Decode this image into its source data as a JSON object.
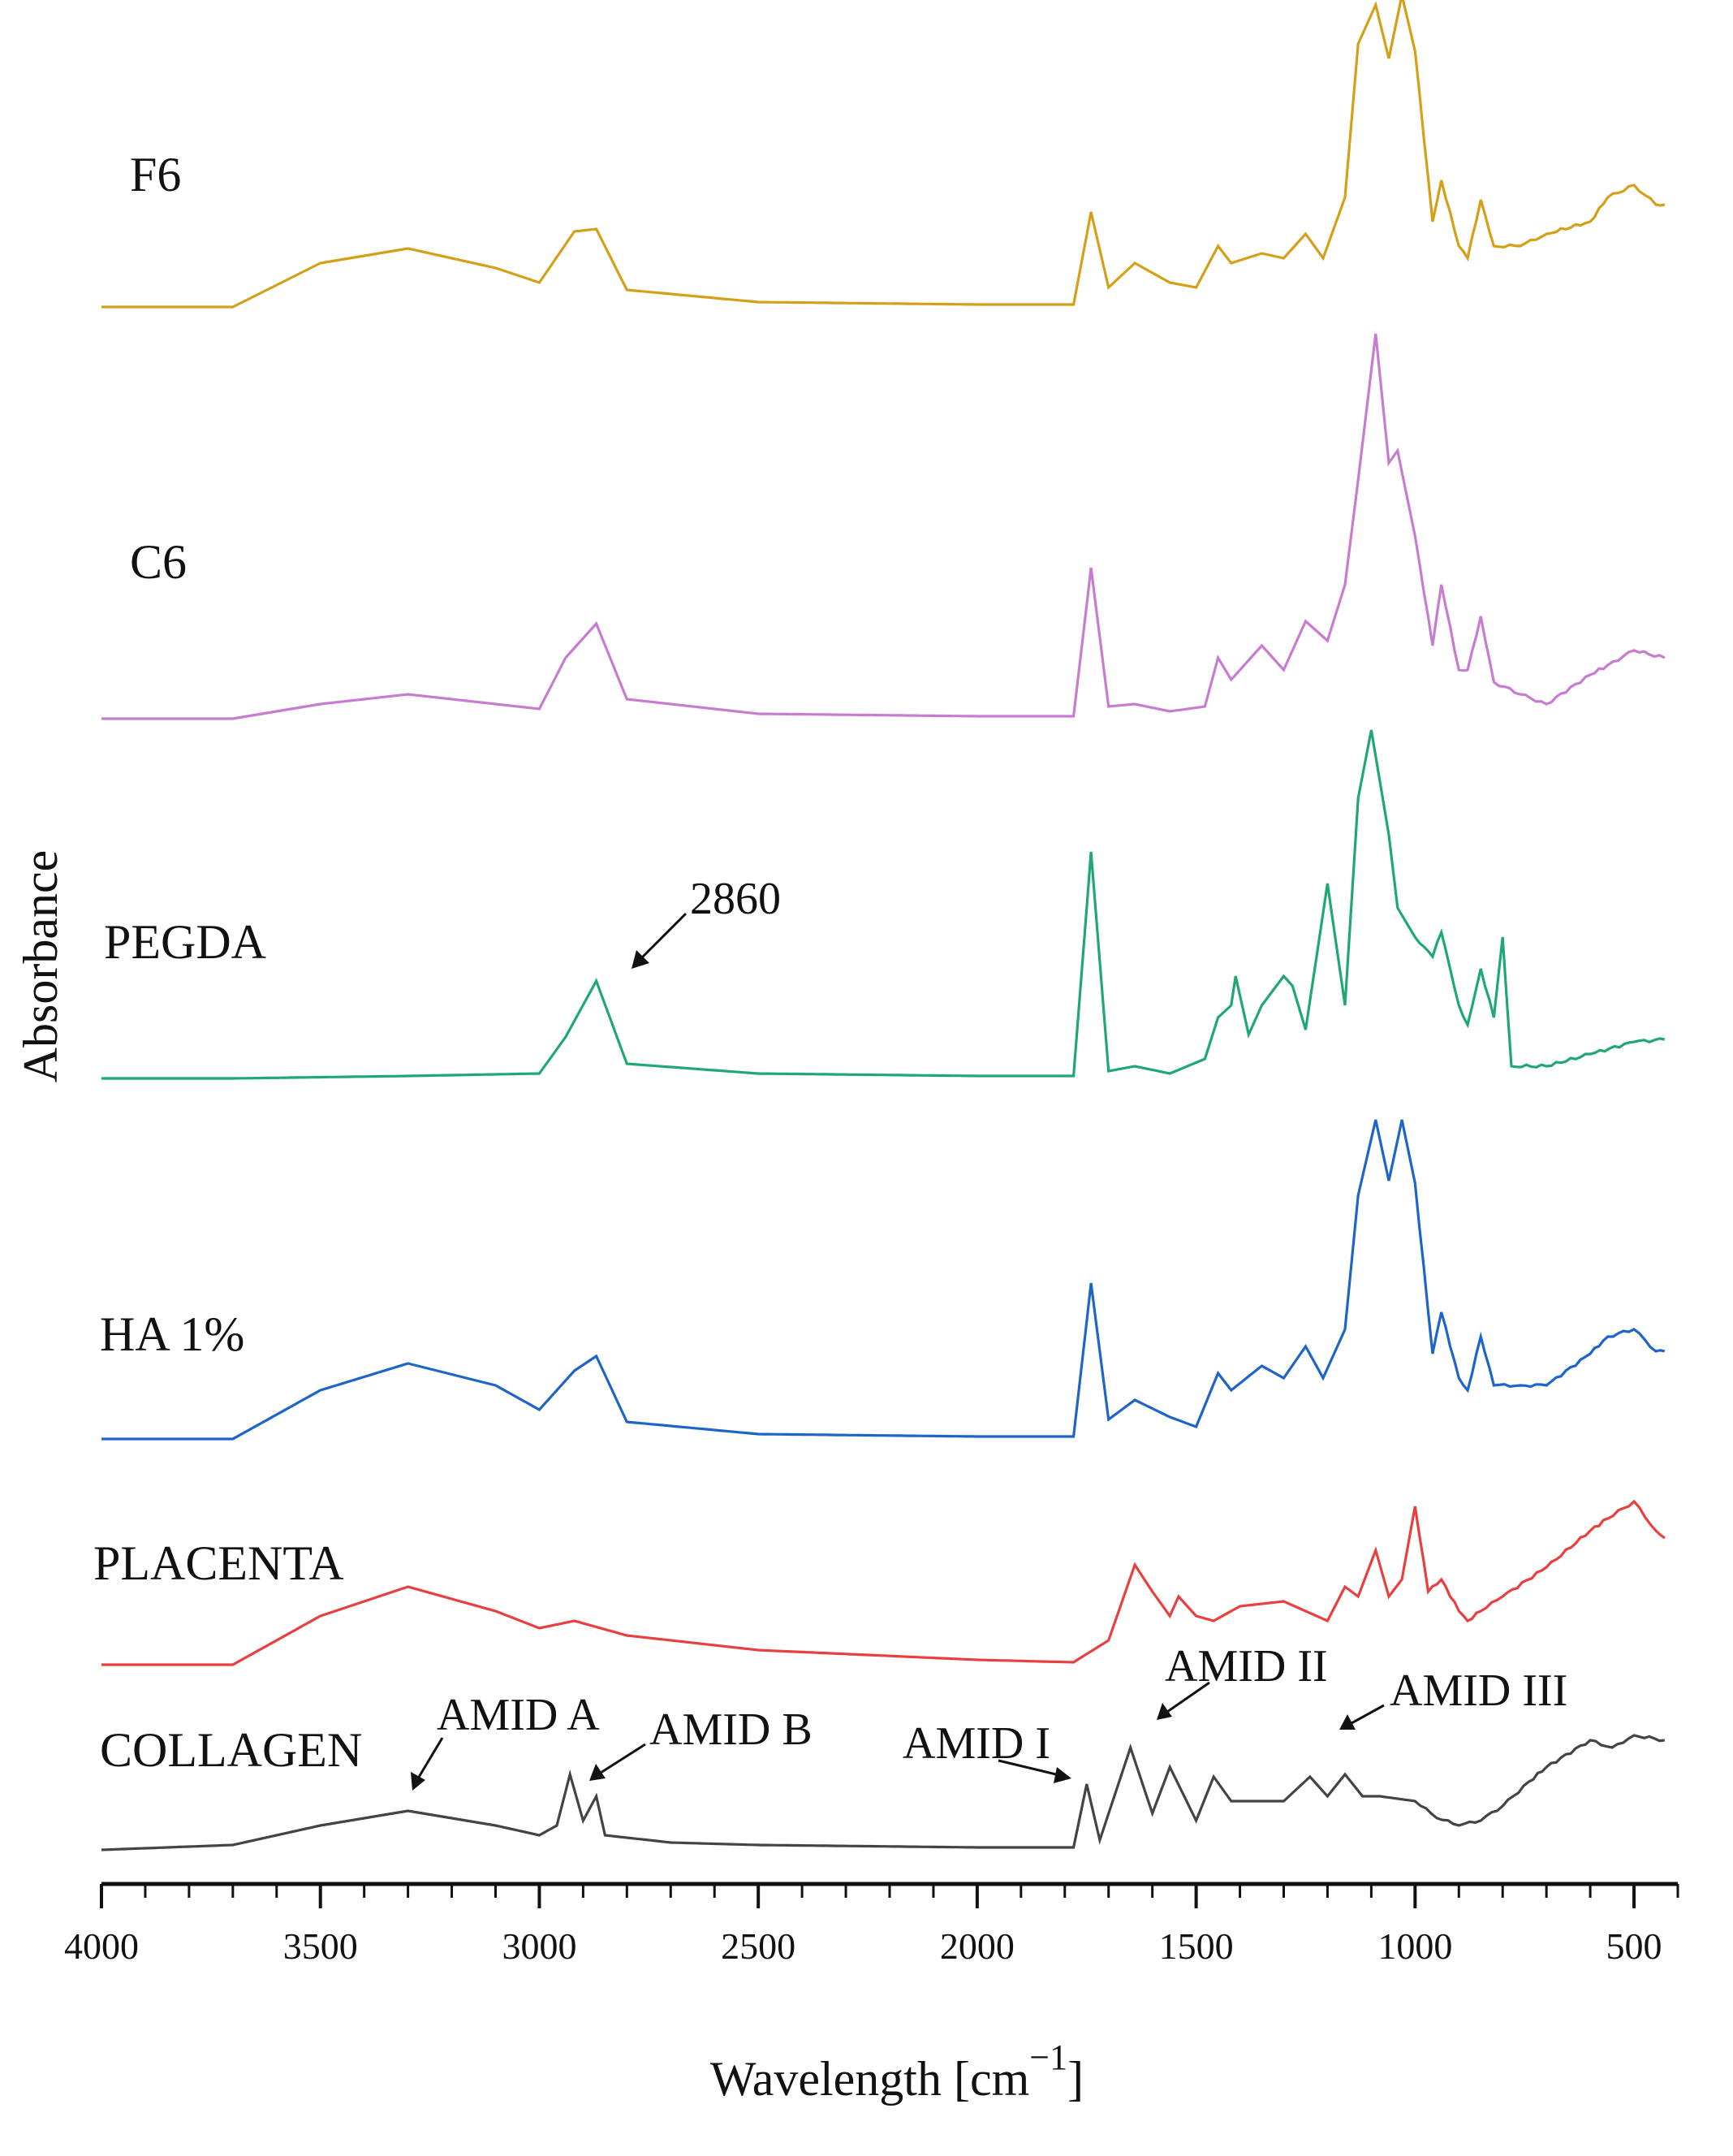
{
  "chart_data": {
    "type": "line",
    "title": "",
    "xlabel": "Wavelength [cm",
    "xlabel_sup": "−1",
    "xlabel_close": "]",
    "ylabel": "Absorbance",
    "xlim": [
      4000,
      400
    ],
    "x_reversed": true,
    "y_ticks_shown": false,
    "x_ticks": [
      4000,
      3500,
      3000,
      2500,
      2000,
      1500,
      1000,
      500
    ],
    "x_tick_labels": [
      "4000",
      "3500",
      "3000",
      "2500",
      "2000",
      "1500",
      "1000",
      "500"
    ],
    "series": [
      {
        "name": "F6",
        "color": "#D4A017",
        "baseline": 0,
        "points": [
          [
            4000,
            0
          ],
          [
            3700,
            0
          ],
          [
            3500,
            0.18
          ],
          [
            3300,
            0.24
          ],
          [
            3100,
            0.16
          ],
          [
            3000,
            0.1
          ],
          [
            2920,
            0.31
          ],
          [
            2870,
            0.32
          ],
          [
            2800,
            0.07
          ],
          [
            2500,
            0.02
          ],
          [
            2000,
            0.01
          ],
          [
            1780,
            0.01
          ],
          [
            1740,
            0.39
          ],
          [
            1700,
            0.08
          ],
          [
            1640,
            0.18
          ],
          [
            1560,
            0.1
          ],
          [
            1500,
            0.08
          ],
          [
            1450,
            0.25
          ],
          [
            1420,
            0.18
          ],
          [
            1350,
            0.22
          ],
          [
            1300,
            0.2
          ],
          [
            1250,
            0.3
          ],
          [
            1210,
            0.2
          ],
          [
            1160,
            0.45
          ],
          [
            1130,
            1.08
          ],
          [
            1090,
            1.24
          ],
          [
            1060,
            1.02
          ],
          [
            1030,
            1.28
          ],
          [
            1000,
            1.05
          ],
          [
            960,
            0.35
          ],
          [
            940,
            0.52
          ],
          [
            900,
            0.25
          ],
          [
            880,
            0.2
          ],
          [
            850,
            0.44
          ],
          [
            820,
            0.25
          ],
          [
            760,
            0.25
          ],
          [
            700,
            0.3
          ],
          [
            600,
            0.35
          ],
          [
            560,
            0.45
          ],
          [
            500,
            0.5
          ],
          [
            450,
            0.42
          ],
          [
            430,
            0.42
          ]
        ]
      },
      {
        "name": "C6",
        "color": "#C77CD0",
        "baseline": 0,
        "points": [
          [
            4000,
            0
          ],
          [
            3700,
            0
          ],
          [
            3500,
            0.06
          ],
          [
            3300,
            0.1
          ],
          [
            3100,
            0.06
          ],
          [
            3000,
            0.04
          ],
          [
            2940,
            0.25
          ],
          [
            2870,
            0.39
          ],
          [
            2800,
            0.08
          ],
          [
            2500,
            0.02
          ],
          [
            2000,
            0.01
          ],
          [
            1780,
            0.01
          ],
          [
            1740,
            0.62
          ],
          [
            1700,
            0.05
          ],
          [
            1640,
            0.06
          ],
          [
            1560,
            0.03
          ],
          [
            1480,
            0.05
          ],
          [
            1450,
            0.25
          ],
          [
            1420,
            0.16
          ],
          [
            1350,
            0.3
          ],
          [
            1300,
            0.2
          ],
          [
            1250,
            0.4
          ],
          [
            1200,
            0.32
          ],
          [
            1160,
            0.55
          ],
          [
            1130,
            0.98
          ],
          [
            1090,
            1.58
          ],
          [
            1060,
            1.05
          ],
          [
            1040,
            1.1
          ],
          [
            1000,
            0.75
          ],
          [
            960,
            0.3
          ],
          [
            940,
            0.55
          ],
          [
            900,
            0.2
          ],
          [
            880,
            0.2
          ],
          [
            850,
            0.42
          ],
          [
            820,
            0.15
          ],
          [
            760,
            0.1
          ],
          [
            700,
            0.06
          ],
          [
            600,
            0.18
          ],
          [
            560,
            0.22
          ],
          [
            500,
            0.28
          ],
          [
            430,
            0.25
          ]
        ]
      },
      {
        "name": "PEGDA",
        "color": "#1FA872",
        "baseline": 0,
        "points": [
          [
            4000,
            0
          ],
          [
            3700,
            0
          ],
          [
            3300,
            0.01
          ],
          [
            3000,
            0.02
          ],
          [
            2940,
            0.17
          ],
          [
            2870,
            0.4
          ],
          [
            2800,
            0.06
          ],
          [
            2500,
            0.02
          ],
          [
            2000,
            0.01
          ],
          [
            1780,
            0.01
          ],
          [
            1740,
            0.93
          ],
          [
            1700,
            0.03
          ],
          [
            1640,
            0.05
          ],
          [
            1560,
            0.02
          ],
          [
            1480,
            0.08
          ],
          [
            1450,
            0.25
          ],
          [
            1420,
            0.3
          ],
          [
            1410,
            0.42
          ],
          [
            1380,
            0.18
          ],
          [
            1350,
            0.3
          ],
          [
            1300,
            0.42
          ],
          [
            1280,
            0.38
          ],
          [
            1250,
            0.2
          ],
          [
            1200,
            0.8
          ],
          [
            1160,
            0.3
          ],
          [
            1130,
            1.15
          ],
          [
            1100,
            1.43
          ],
          [
            1060,
            1.0
          ],
          [
            1040,
            0.7
          ],
          [
            1000,
            0.58
          ],
          [
            960,
            0.5
          ],
          [
            940,
            0.6
          ],
          [
            900,
            0.3
          ],
          [
            880,
            0.22
          ],
          [
            850,
            0.45
          ],
          [
            820,
            0.25
          ],
          [
            800,
            0.58
          ],
          [
            780,
            0.05
          ],
          [
            700,
            0.05
          ],
          [
            600,
            0.1
          ],
          [
            500,
            0.15
          ],
          [
            430,
            0.16
          ]
        ]
      },
      {
        "name": "HA 1%",
        "color": "#1F64C8",
        "baseline": 0,
        "points": [
          [
            4000,
            0
          ],
          [
            3700,
            0
          ],
          [
            3500,
            0.2
          ],
          [
            3300,
            0.31
          ],
          [
            3100,
            0.22
          ],
          [
            3000,
            0.12
          ],
          [
            2920,
            0.28
          ],
          [
            2870,
            0.34
          ],
          [
            2800,
            0.07
          ],
          [
            2500,
            0.02
          ],
          [
            2000,
            0.01
          ],
          [
            1780,
            0.01
          ],
          [
            1740,
            0.64
          ],
          [
            1700,
            0.08
          ],
          [
            1640,
            0.16
          ],
          [
            1560,
            0.09
          ],
          [
            1500,
            0.05
          ],
          [
            1450,
            0.27
          ],
          [
            1420,
            0.2
          ],
          [
            1350,
            0.3
          ],
          [
            1300,
            0.25
          ],
          [
            1250,
            0.38
          ],
          [
            1210,
            0.25
          ],
          [
            1160,
            0.45
          ],
          [
            1130,
            1.0
          ],
          [
            1090,
            1.31
          ],
          [
            1060,
            1.06
          ],
          [
            1030,
            1.31
          ],
          [
            1000,
            1.05
          ],
          [
            960,
            0.35
          ],
          [
            940,
            0.52
          ],
          [
            900,
            0.25
          ],
          [
            880,
            0.2
          ],
          [
            850,
            0.42
          ],
          [
            820,
            0.22
          ],
          [
            760,
            0.22
          ],
          [
            700,
            0.22
          ],
          [
            600,
            0.35
          ],
          [
            560,
            0.42
          ],
          [
            500,
            0.45
          ],
          [
            450,
            0.36
          ],
          [
            430,
            0.36
          ]
        ]
      },
      {
        "name": "PLACENTA",
        "color": "#E84040",
        "baseline": 0,
        "points": [
          [
            4000,
            0
          ],
          [
            3700,
            0
          ],
          [
            3500,
            0.2
          ],
          [
            3300,
            0.32
          ],
          [
            3100,
            0.22
          ],
          [
            3000,
            0.15
          ],
          [
            2920,
            0.18
          ],
          [
            2800,
            0.12
          ],
          [
            2500,
            0.06
          ],
          [
            2000,
            0.02
          ],
          [
            1780,
            0.01
          ],
          [
            1700,
            0.1
          ],
          [
            1640,
            0.41
          ],
          [
            1600,
            0.3
          ],
          [
            1560,
            0.2
          ],
          [
            1540,
            0.28
          ],
          [
            1500,
            0.2
          ],
          [
            1460,
            0.18
          ],
          [
            1400,
            0.24
          ],
          [
            1300,
            0.26
          ],
          [
            1200,
            0.18
          ],
          [
            1160,
            0.32
          ],
          [
            1130,
            0.28
          ],
          [
            1090,
            0.47
          ],
          [
            1060,
            0.28
          ],
          [
            1030,
            0.35
          ],
          [
            1000,
            0.65
          ],
          [
            970,
            0.3
          ],
          [
            940,
            0.35
          ],
          [
            900,
            0.22
          ],
          [
            880,
            0.18
          ],
          [
            850,
            0.22
          ],
          [
            800,
            0.28
          ],
          [
            700,
            0.4
          ],
          [
            600,
            0.55
          ],
          [
            560,
            0.6
          ],
          [
            500,
            0.67
          ],
          [
            450,
            0.55
          ],
          [
            430,
            0.52
          ]
        ]
      },
      {
        "name": "COLLAGEN",
        "color": "#444444",
        "baseline": 0,
        "points": [
          [
            4000,
            0
          ],
          [
            3700,
            0.02
          ],
          [
            3500,
            0.1
          ],
          [
            3300,
            0.16
          ],
          [
            3100,
            0.1
          ],
          [
            3000,
            0.06
          ],
          [
            2960,
            0.1
          ],
          [
            2930,
            0.31
          ],
          [
            2900,
            0.12
          ],
          [
            2870,
            0.22
          ],
          [
            2850,
            0.06
          ],
          [
            2700,
            0.03
          ],
          [
            2500,
            0.02
          ],
          [
            2000,
            0.01
          ],
          [
            1780,
            0.01
          ],
          [
            1750,
            0.27
          ],
          [
            1720,
            0.04
          ],
          [
            1650,
            0.42
          ],
          [
            1600,
            0.15
          ],
          [
            1560,
            0.34
          ],
          [
            1500,
            0.12
          ],
          [
            1460,
            0.3
          ],
          [
            1420,
            0.2
          ],
          [
            1300,
            0.2
          ],
          [
            1240,
            0.3
          ],
          [
            1200,
            0.22
          ],
          [
            1160,
            0.31
          ],
          [
            1120,
            0.22
          ],
          [
            1080,
            0.22
          ],
          [
            1000,
            0.2
          ],
          [
            950,
            0.13
          ],
          [
            900,
            0.1
          ],
          [
            850,
            0.12
          ],
          [
            800,
            0.18
          ],
          [
            740,
            0.28
          ],
          [
            700,
            0.34
          ],
          [
            600,
            0.45
          ],
          [
            550,
            0.42
          ],
          [
            500,
            0.47
          ],
          [
            430,
            0.45
          ]
        ]
      }
    ],
    "annotations": [
      {
        "text": "2860",
        "series": "PEGDA"
      },
      {
        "text": "AMID A",
        "series": "COLLAGEN"
      },
      {
        "text": "AMID B",
        "series": "COLLAGEN"
      },
      {
        "text": "AMID I",
        "series": "COLLAGEN"
      },
      {
        "text": "AMID II",
        "series": "COLLAGEN"
      },
      {
        "text": "AMID III",
        "series": "COLLAGEN"
      }
    ]
  }
}
